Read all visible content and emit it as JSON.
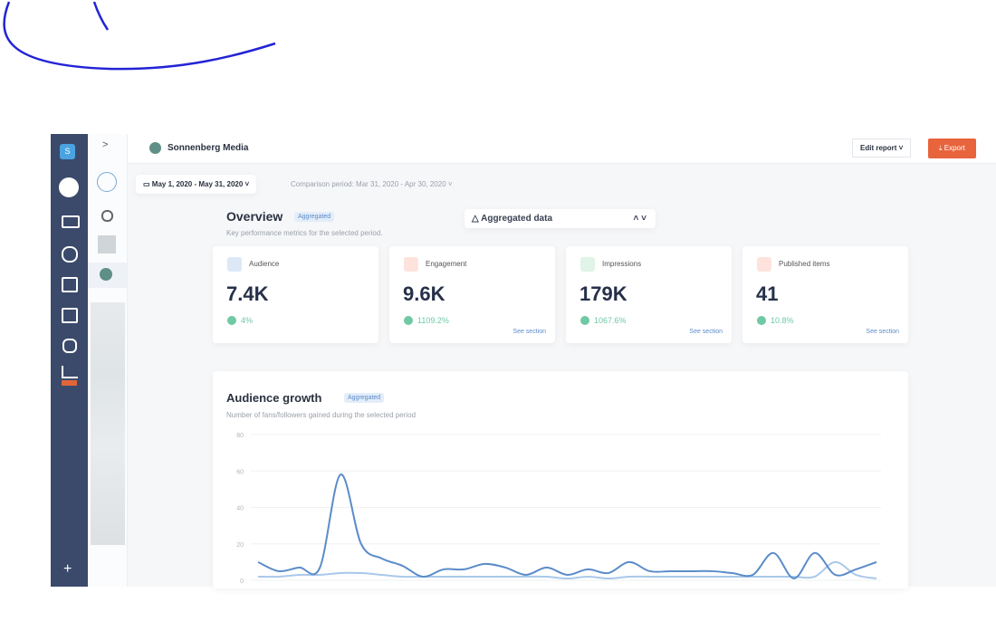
{
  "header": {
    "workspace_initial": "S",
    "brand": "Sonnenberg Media",
    "edit_report": "Edit report",
    "export": "Export"
  },
  "filters": {
    "date_range": "May 1, 2020 - May 31, 2020",
    "comparison": "Comparison period: Mar 31, 2020 - Apr 30, 2020"
  },
  "overview": {
    "title": "Overview",
    "badge": "Aggregated",
    "subtitle": "Key performance metrics for the selected period.",
    "dropdown": "Aggregated data",
    "cards": [
      {
        "label": "Audience",
        "value": "7.4K",
        "change": "4%"
      },
      {
        "label": "Engagement",
        "value": "9.6K",
        "change": "1109.2%",
        "link": "See section"
      },
      {
        "label": "Impressions",
        "value": "179K",
        "change": "1067.6%",
        "link": "See section"
      },
      {
        "label": "Published items",
        "value": "41",
        "change": "10.8%",
        "link": "See section"
      }
    ]
  },
  "chart_data": {
    "type": "line",
    "title": "Audience growth",
    "badge": "Aggregated",
    "subtitle": "Number of fans/followers gained during the selected period",
    "ylim": [
      0,
      80
    ],
    "yticks": [
      0,
      20,
      40,
      60,
      80
    ],
    "grid": true,
    "series": [
      {
        "color": "#5b8cc9",
        "values": [
          10,
          5,
          7,
          7,
          58,
          20,
          12,
          8,
          2,
          6,
          6,
          9,
          7,
          3,
          7,
          3,
          6,
          4,
          10,
          5,
          5,
          5,
          5,
          4,
          3,
          15,
          1,
          15,
          3,
          6,
          10
        ]
      },
      {
        "color": "#a9c8ea",
        "values": [
          2,
          2,
          3,
          3,
          4,
          4,
          3,
          2,
          2,
          2,
          2,
          2,
          2,
          2,
          2,
          1,
          2,
          1,
          2,
          2,
          2,
          2,
          2,
          2,
          2,
          2,
          2,
          2,
          10,
          3,
          1
        ]
      }
    ]
  }
}
